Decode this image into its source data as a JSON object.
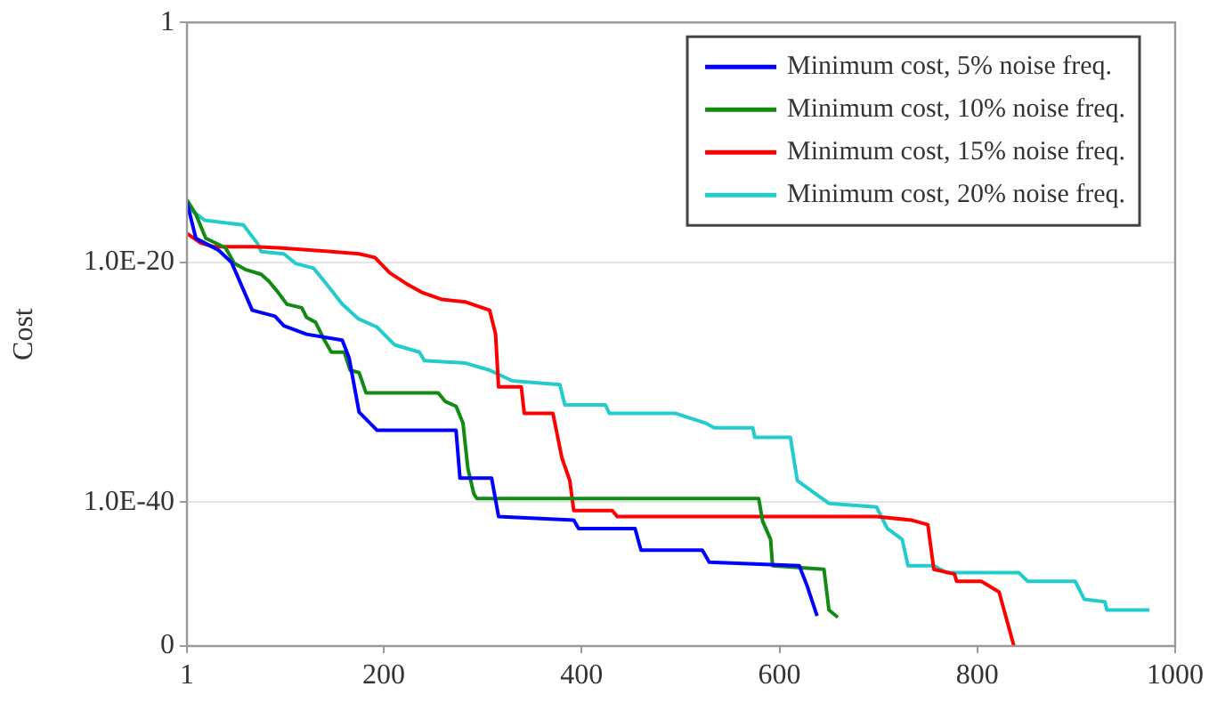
{
  "chart_data": {
    "type": "line",
    "ylabel": "Cost",
    "log": "y",
    "grid": "y",
    "legend": "top right",
    "marker": "none",
    "line_style": "solid",
    "xlim": [
      1,
      1000
    ],
    "xticks": [
      1,
      200,
      400,
      600,
      800,
      1000
    ],
    "ylim": [
      1e-52,
      1
    ],
    "yticks": [
      1,
      {
        "value": 1e-20,
        "label": "1.0E-20"
      },
      {
        "value": 1e-40,
        "label": "1.0E-40"
      },
      {
        "value": 1e-52,
        "label": "0"
      }
    ],
    "series": [
      {
        "name": "Minimum cost, 5% noise freq.",
        "color": "#0000ff",
        "x": [
          1,
          10,
          33,
          46,
          67,
          90,
          99,
          122,
          158,
          165,
          175,
          193,
          273,
          277,
          309,
          316,
          392,
          397,
          454,
          460,
          522,
          529,
          620,
          628,
          638
        ],
        "values": [
          1e-15,
          1e-18,
          1e-19,
          1e-20,
          1e-24,
          3.2e-25,
          5e-26,
          1e-26,
          3.2e-27,
          1e-28,
          3.2e-33,
          1e-34,
          1e-34,
          1e-38,
          1e-38,
          6.3e-42,
          3.2e-42,
          6.3e-43,
          6.3e-43,
          1e-44,
          1e-44,
          1e-45,
          5e-46,
          1e-47,
          3.2e-50
        ]
      },
      {
        "name": "Minimum cost, 10% noise freq.",
        "color": "#138a13",
        "x": [
          1,
          10,
          20,
          40,
          49,
          60,
          76,
          84,
          93,
          102,
          117,
          122,
          131,
          140,
          147,
          160,
          166,
          175,
          182,
          255,
          262,
          273,
          280,
          285,
          291,
          294,
          579,
          583,
          591,
          593,
          645,
          650,
          659
        ],
        "values": [
          1.6e-15,
          1e-16,
          1e-18,
          1.6e-19,
          7.9e-21,
          2.5e-21,
          1e-21,
          2.5e-22,
          3.2e-23,
          3.2e-24,
          1.6e-24,
          2.5e-25,
          1e-25,
          3.2e-27,
          3.2e-28,
          3.2e-28,
          1e-29,
          6.3e-30,
          1.3e-31,
          1.3e-31,
          2.5e-32,
          1e-32,
          4e-34,
          6.3e-38,
          5e-40,
          2e-40,
          2e-40,
          2.5e-42,
          7.9e-44,
          5e-46,
          2.5e-46,
          1e-49,
          2.5e-50
        ]
      },
      {
        "name": "Minimum cost, 15% noise freq.",
        "color": "#ff0000",
        "x": [
          1,
          15,
          28,
          69,
          94,
          147,
          175,
          191,
          206,
          223,
          238,
          259,
          282,
          307,
          313,
          316,
          339,
          342,
          371,
          380,
          388,
          392,
          431,
          436,
          698,
          733,
          750,
          756,
          777,
          779,
          804,
          822,
          837
        ],
        "values": [
          2.5e-18,
          4e-19,
          2e-19,
          2e-19,
          1.6e-19,
          7.9e-20,
          5e-20,
          2.5e-20,
          1.3e-21,
          1.6e-22,
          3.2e-23,
          7.9e-24,
          5e-24,
          1e-24,
          1e-26,
          4e-31,
          4e-31,
          2.5e-33,
          2.5e-33,
          5e-37,
          6.3e-39,
          2e-41,
          2e-41,
          6.3e-42,
          6.3e-42,
          3.2e-42,
          1.3e-42,
          2.5e-46,
          1e-46,
          2.5e-47,
          2.5e-47,
          3.2e-48,
          1e-52
        ]
      },
      {
        "name": "Minimum cost, 20% noise freq.",
        "color": "#22cccc",
        "x": [
          1,
          19,
          58,
          72,
          76,
          99,
          111,
          129,
          140,
          158,
          174,
          193,
          211,
          236,
          241,
          282,
          307,
          330,
          378,
          383,
          424,
          428,
          495,
          525,
          534,
          573,
          575,
          611,
          618,
          638,
          650,
          698,
          709,
          724,
          730,
          756,
          769,
          842,
          851,
          899,
          908,
          929,
          931,
          974
        ],
        "values": [
          4e-16,
          3.2e-17,
          1.3e-17,
          4e-19,
          7.9e-20,
          5e-20,
          7.9e-21,
          3.2e-21,
          2.5e-22,
          3.2e-24,
          2e-25,
          4e-26,
          1.3e-27,
          3.2e-28,
          6.3e-29,
          4e-29,
          1e-29,
          1.3e-30,
          6.3e-31,
          1.3e-32,
          1.3e-32,
          2.5e-33,
          2.5e-33,
          4e-34,
          1.6e-34,
          1.6e-34,
          2.5e-35,
          2.5e-35,
          6.3e-39,
          4e-40,
          7.9e-41,
          4e-41,
          6.3e-43,
          7.9e-44,
          5e-46,
          5e-46,
          1.3e-46,
          1.3e-46,
          2.5e-47,
          2.5e-47,
          7.9e-49,
          5e-49,
          1e-49,
          1e-49
        ]
      }
    ]
  }
}
